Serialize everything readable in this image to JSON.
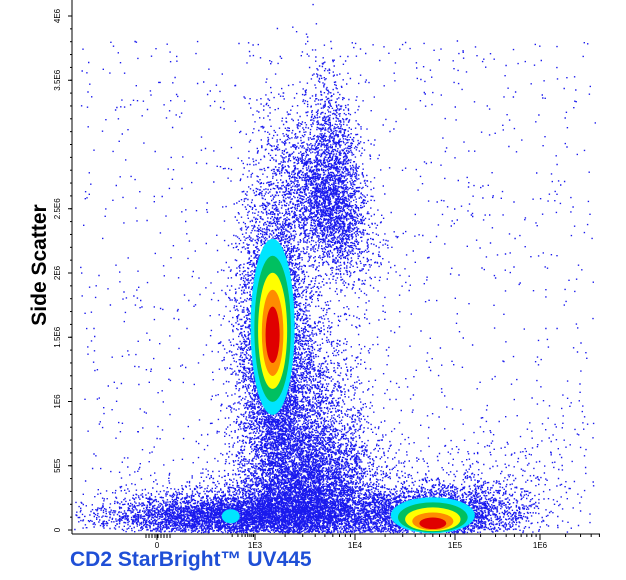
{
  "chart_data": {
    "type": "scatter",
    "subtype": "flow-cytometry-density-dot-plot",
    "xlabel": "CD2 StarBright™ UV445",
    "ylabel": "Side Scatter",
    "x_scale": "biexponential",
    "y_scale": "linear",
    "ylim": [
      0,
      4000000
    ],
    "x_tick_labels": [
      "0",
      "1E3",
      "1E4",
      "1E5",
      "1E6"
    ],
    "y_tick_labels": [
      "0",
      "5E5",
      "1E6",
      "1.5E6",
      "2E6",
      "2.5E6",
      "3.5E6",
      "4E6"
    ],
    "grid": false,
    "colors": {
      "dots": "#1a1aee",
      "density_levels": [
        "#00e5ff",
        "#00c060",
        "#ffff00",
        "#ff8c00",
        "#e00000"
      ]
    },
    "populations": [
      {
        "name": "",
        "x_center": 1500,
        "y_center": 1550000,
        "density": "high"
      },
      {
        "name": "",
        "x_center": 5000,
        "y_center": 2550000,
        "density": "low"
      },
      {
        "name": "",
        "x_center": 3000,
        "y_center": 1100000,
        "density": "low"
      },
      {
        "name": "",
        "x_center": 3500,
        "y_center": 400000,
        "density": "low"
      },
      {
        "name": "",
        "x_center": 600,
        "y_center": 130000,
        "density": "low"
      },
      {
        "name": "",
        "x_center": 60000,
        "y_center": 130000,
        "density": "high"
      }
    ]
  }
}
